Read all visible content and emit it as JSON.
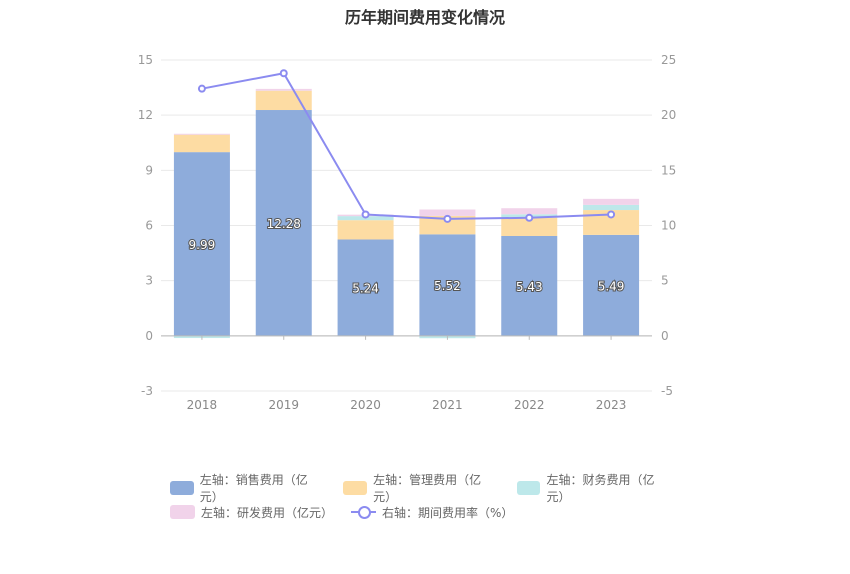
{
  "chart_data": {
    "type": "bar",
    "title": "历年期间费用变化情况",
    "categories": [
      "2018",
      "2019",
      "2020",
      "2021",
      "2022",
      "2023"
    ],
    "left_axis": {
      "ticks": [
        "15",
        "12",
        "9",
        "6",
        "3",
        "0",
        "-3"
      ],
      "ylim": [
        -3,
        15
      ]
    },
    "right_axis": {
      "ticks": [
        "25",
        "20",
        "15",
        "10",
        "5",
        "0",
        "-5"
      ],
      "ylim": [
        -5,
        25
      ]
    },
    "grid": true,
    "legend_position": "bottom",
    "series": [
      {
        "name": "左轴：销售费用（亿元）",
        "type": "bar",
        "color": "#8eacdb",
        "values": [
          9.99,
          12.28,
          5.24,
          5.52,
          5.43,
          5.49
        ],
        "labels": [
          "9.99",
          "12.28",
          "5.24",
          "5.52",
          "5.43",
          "5.49"
        ]
      },
      {
        "name": "左轴：管理费用（亿元）",
        "type": "bar",
        "color": "#fddca3",
        "values": [
          0.95,
          1.05,
          1.05,
          1.0,
          1.0,
          1.35
        ]
      },
      {
        "name": "左轴：财务费用（亿元）",
        "type": "bar",
        "color": "#bde8ea",
        "values": [
          -0.12,
          0.0,
          0.22,
          -0.13,
          0.18,
          0.28
        ]
      },
      {
        "name": "左轴：研发费用（亿元）",
        "type": "bar",
        "color": "#f1d3ea",
        "values": [
          0.05,
          0.1,
          0.08,
          0.35,
          0.33,
          0.33
        ]
      },
      {
        "name": "右轴：期间费用率（%）",
        "type": "line",
        "color": "#8b8bf0",
        "values": [
          22.4,
          23.8,
          11.0,
          10.6,
          10.7,
          11.0
        ]
      }
    ]
  }
}
